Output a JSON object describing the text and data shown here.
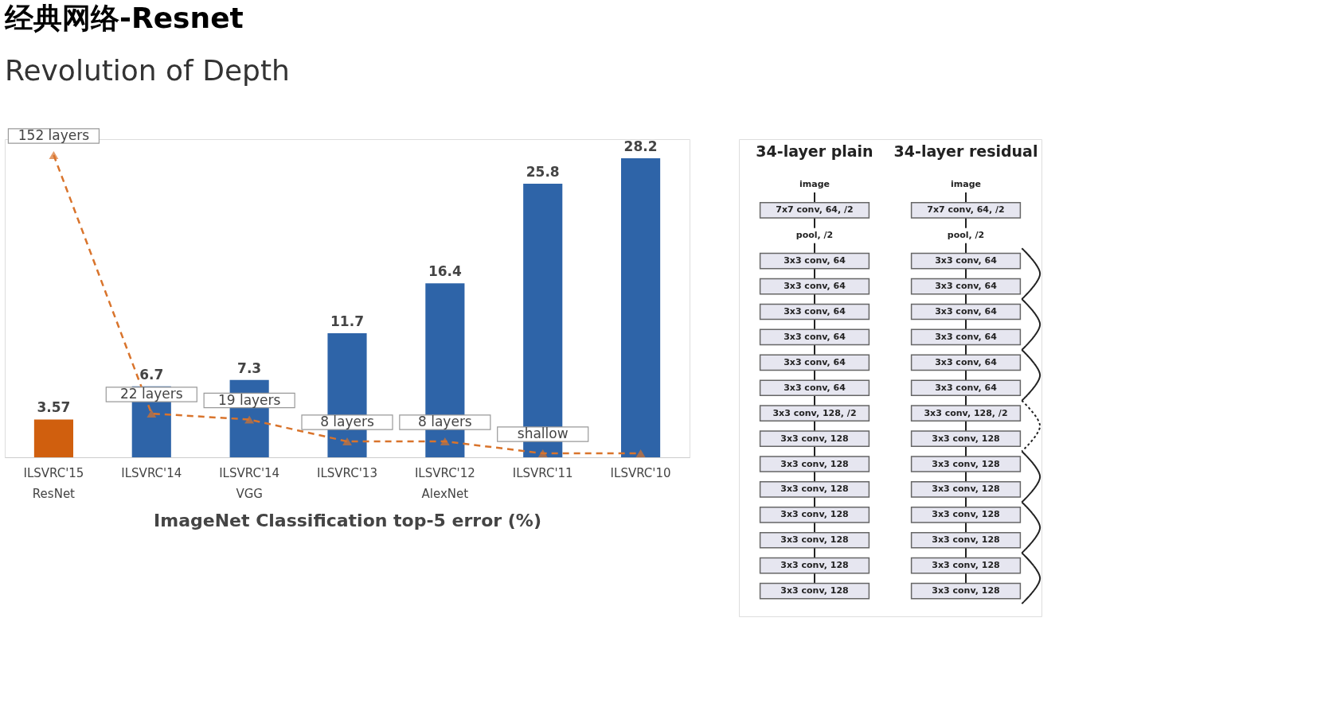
{
  "chart_data": [
    {
      "type": "bar",
      "title": "经典网络-Resnet",
      "subtitle": "Revolution of Depth",
      "xlabel": "ImageNet Classification top-5 error (%)",
      "categories": [
        "ILSVRC'15\nResNet",
        "ILSVRC'14",
        "ILSVRC'14\nVGG",
        "ILSVRC'13",
        "ILSVRC'12\nAlexNet",
        "ILSVRC'11",
        "ILSVRC'10"
      ],
      "series": [
        {
          "type": "bar",
          "values": [
            3.57,
            6.7,
            7.3,
            11.7,
            16.4,
            25.8,
            28.2
          ],
          "colors": [
            "#d05f0e",
            "#2e64a8",
            "#2e64a8",
            "#2e64a8",
            "#2e64a8",
            "#2e64a8",
            "#2e64a8"
          ]
        },
        {
          "type": "line",
          "axis": "y2",
          "color": "#d9742c",
          "line_style": "dashed",
          "marker": "triangle",
          "values": [
            152,
            22,
            19,
            8,
            8,
            2,
            2
          ],
          "value_labels": [
            "152 layers",
            "22 layers",
            "19 layers",
            "8 layers",
            "8 layers",
            "shallow",
            null
          ]
        }
      ],
      "data_labels": true,
      "ylim": [
        0,
        30
      ],
      "tick_labels": "x",
      "grid": false
    },
    {
      "type": "other",
      "categories": [
        "34-layer plain",
        "34-layer residual"
      ],
      "annotations": [
        "image",
        "7x7 conv, 64, /2",
        "pool, /2",
        "3x3 conv, 64",
        "3x3 conv, 64",
        "3x3 conv, 64",
        "3x3 conv, 64",
        "3x3 conv, 64",
        "3x3 conv, 64",
        "3x3 conv, 128, /2",
        "3x3 conv, 128",
        "3x3 conv, 128",
        "3x3 conv, 128",
        "3x3 conv, 128",
        "3x3 conv, 128",
        "3x3 conv, 128",
        "3x3 conv, 128"
      ]
    }
  ]
}
